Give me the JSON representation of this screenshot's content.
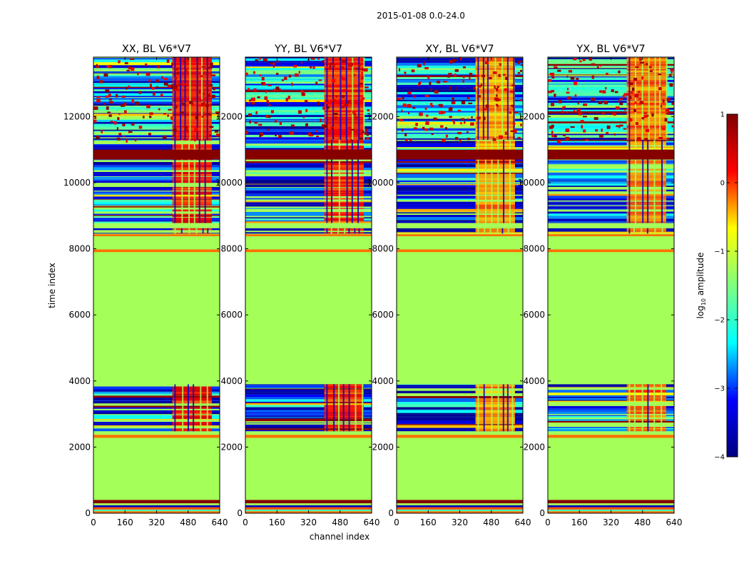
{
  "chart_data": {
    "type": "heatmap",
    "suptitle": "2015-01-08 0.0-24.0",
    "xlabel": "channel index",
    "ylabel": "time index",
    "xlim": [
      0,
      640
    ],
    "ylim": [
      0,
      13800
    ],
    "xticks": [
      0,
      160,
      320,
      480,
      640
    ],
    "yticks": [
      0,
      2000,
      4000,
      6000,
      8000,
      10000,
      12000
    ],
    "colorbar": {
      "label_prefix": "log",
      "label_sub": "10",
      "label_suffix": " amplitude",
      "range": [
        -4,
        1
      ],
      "ticks": [
        1,
        0,
        -1,
        -2,
        -3,
        -4
      ],
      "tick_labels": [
        "1",
        "0",
        "−1",
        "−2",
        "−3",
        "−4"
      ],
      "colormap": "jet",
      "colormap_stops": [
        "#00007f",
        "#0000ff",
        "#00ffff",
        "#7fff7f",
        "#ffff00",
        "#ff0000",
        "#7f0000"
      ]
    },
    "panels": [
      {
        "title": "XX, BL V6*V7",
        "band": [
          400,
          600
        ],
        "band_value": 0.15
      },
      {
        "title": "YY, BL V6*V7",
        "band": [
          400,
          600
        ],
        "band_value": 0.05
      },
      {
        "title": "XY, BL V6*V7",
        "band": [
          400,
          600
        ],
        "band_value": -0.3
      },
      {
        "title": "YX, BL V6*V7",
        "band": [
          400,
          600
        ],
        "band_value": -0.2
      }
    ],
    "background_value": -1.25,
    "structure": [
      {
        "t0": 0,
        "t1": 60,
        "value": -0.2
      },
      {
        "t0": 60,
        "t1": 110,
        "value": -1.9
      },
      {
        "t0": 110,
        "t1": 180,
        "value": -0.1
      },
      {
        "t0": 180,
        "t1": 240,
        "value": -3.6
      },
      {
        "t0": 240,
        "t1": 300,
        "value": -1.25
      },
      {
        "t0": 300,
        "t1": 400,
        "value": 0.95
      },
      {
        "t0": 2280,
        "t1": 2370,
        "value": -0.2
      },
      {
        "t0": 2480,
        "t1": 3900,
        "kind": "noisy"
      },
      {
        "t0": 7900,
        "t1": 7980,
        "value": -0.2
      },
      {
        "t0": 8380,
        "t1": 8440,
        "value": -0.2
      },
      {
        "t0": 8460,
        "t1": 8620,
        "kind": "noisy"
      },
      {
        "t0": 8780,
        "t1": 11300,
        "kind": "noisy"
      },
      {
        "t0": 10700,
        "t1": 11000,
        "value": 0.95
      },
      {
        "t0": 11300,
        "t1": 13800,
        "kind": "noisy_active"
      }
    ]
  }
}
